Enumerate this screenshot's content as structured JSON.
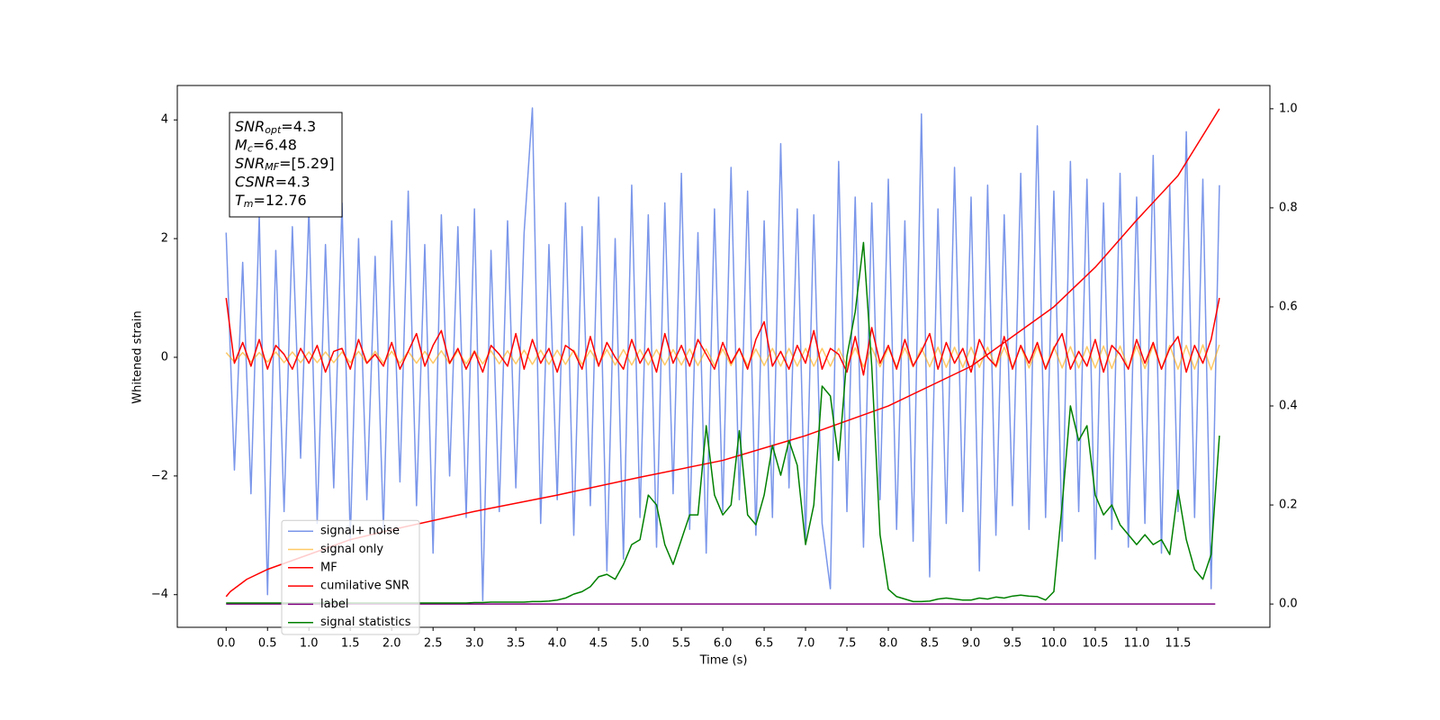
{
  "chart_data": {
    "type": "line",
    "xlabel": "Time (s)",
    "ylabel": "Whitened strain",
    "xlim": [
      -0.59,
      12.61
    ],
    "ylim": [
      -4.55,
      4.58
    ],
    "y2lim": [
      -0.047,
      1.047
    ],
    "xticks": [
      {
        "value": 0,
        "label": "0.0"
      },
      0.5,
      {
        "value": 1,
        "label": "1.0"
      },
      1.5,
      {
        "value": 2,
        "label": "2.0"
      },
      2.5,
      {
        "value": 3,
        "label": "3.0"
      },
      3.5,
      {
        "value": 4,
        "label": "4.0"
      },
      4.5,
      {
        "value": 5,
        "label": "5.0"
      },
      5.5,
      {
        "value": 6,
        "label": "6.0"
      },
      6.5,
      {
        "value": 7,
        "label": "7.0"
      },
      7.5,
      {
        "value": 8,
        "label": "8.0"
      },
      8.5,
      {
        "value": 9,
        "label": "9.0"
      },
      9.5,
      {
        "value": 10,
        "label": "10.0"
      },
      10.5,
      {
        "value": 11,
        "label": "11.0"
      },
      11.5
    ],
    "yticks": [
      {
        "value": -4,
        "label": "−4"
      },
      {
        "value": -2,
        "label": "−2"
      },
      0,
      2,
      4
    ],
    "y2ticks": [
      {
        "value": 0,
        "label": "0.0"
      },
      0.2,
      0.4,
      0.6,
      0.8,
      {
        "value": 1,
        "label": "1.0"
      }
    ],
    "legend": "lower left",
    "annotations": [
      {
        "name": "SNR",
        "sub": "opt",
        "text": "=4.3"
      },
      {
        "name": "M",
        "sub": "c",
        "text": "=6.48"
      },
      {
        "name": "SNR",
        "sub": "MF",
        "text": "=[5.29]"
      },
      {
        "name": "CSNR",
        "text": "=4.3"
      },
      {
        "name": "T",
        "sub": "m",
        "text": "=12.76"
      }
    ],
    "x": [
      0,
      0.1,
      0.2,
      0.3,
      0.4,
      0.5,
      0.6,
      0.7,
      0.8,
      0.9,
      1,
      1.1,
      1.2,
      1.3,
      1.4,
      1.5,
      1.6,
      1.7,
      1.8,
      1.9,
      2,
      2.1,
      2.2,
      2.3,
      2.4,
      2.5,
      2.6,
      2.7,
      2.8,
      2.9,
      3,
      3.1,
      3.2,
      3.3,
      3.4,
      3.5,
      3.6,
      3.7,
      3.8,
      3.9,
      4,
      4.1,
      4.2,
      4.3,
      4.4,
      4.5,
      4.6,
      4.7,
      4.8,
      4.9,
      5,
      5.1,
      5.2,
      5.3,
      5.4,
      5.5,
      5.6,
      5.7,
      5.8,
      5.9,
      6,
      6.1,
      6.2,
      6.3,
      6.4,
      6.5,
      6.6,
      6.7,
      6.8,
      6.9,
      7,
      7.1,
      7.2,
      7.3,
      7.4,
      7.5,
      7.6,
      7.7,
      7.8,
      7.9,
      8,
      8.1,
      8.2,
      8.3,
      8.4,
      8.5,
      8.6,
      8.7,
      8.8,
      8.9,
      9,
      9.1,
      9.2,
      9.3,
      9.4,
      9.5,
      9.6,
      9.7,
      9.8,
      9.9,
      10,
      10.1,
      10.2,
      10.3,
      10.4,
      10.5,
      10.6,
      10.7,
      10.8,
      10.9,
      11,
      11.1,
      11.2,
      11.3,
      11.4,
      11.5,
      11.6,
      11.7,
      11.8,
      11.9,
      12
    ],
    "series": [
      {
        "name": "signal+ noise",
        "color": "#4169e1",
        "alpha": 0.7,
        "axis": "y",
        "values": [
          2.1,
          -1.9,
          1.6,
          -2.3,
          2.4,
          -4.0,
          1.8,
          -2.6,
          2.2,
          -1.7,
          2.5,
          -2.8,
          1.9,
          -2.2,
          2.6,
          -3.1,
          2.0,
          -2.4,
          1.7,
          -2.9,
          2.3,
          -2.1,
          2.8,
          -2.5,
          1.9,
          -3.3,
          2.4,
          -2.0,
          2.2,
          -2.7,
          2.5,
          -4.1,
          1.8,
          -2.6,
          2.3,
          -2.2,
          2.1,
          4.2,
          -2.8,
          1.9,
          -2.4,
          2.6,
          -3.0,
          2.2,
          -2.5,
          2.7,
          -3.6,
          2.0,
          -3.4,
          2.9,
          -2.7,
          2.4,
          -3.2,
          2.6,
          -2.3,
          3.1,
          -2.9,
          2.1,
          -3.3,
          2.5,
          -2.6,
          3.2,
          -2.4,
          2.8,
          -3.0,
          2.3,
          -2.7,
          3.6,
          -2.2,
          2.5,
          -3.1,
          2.4,
          -2.8,
          -3.9,
          3.3,
          -2.6,
          2.7,
          -3.2,
          2.6,
          -2.4,
          3.0,
          -2.9,
          2.3,
          -3.1,
          4.1,
          -3.7,
          2.5,
          -2.8,
          3.2,
          -2.6,
          2.7,
          -3.6,
          2.9,
          -3.0,
          2.4,
          -2.5,
          3.1,
          -2.9,
          3.9,
          -2.7,
          2.8,
          -3.1,
          3.3,
          -2.6,
          3.0,
          -3.4,
          2.6,
          -2.9,
          3.1,
          -3.2,
          2.7,
          -2.8,
          3.4,
          -3.3,
          2.9,
          -2.6,
          3.8,
          -2.7,
          3.0,
          -3.9,
          2.9
        ]
      },
      {
        "name": "signal only",
        "color": "#ffa500",
        "alpha": 0.6,
        "axis": "y",
        "values": [
          0.08,
          -0.08,
          0.08,
          -0.08,
          0.08,
          -0.08,
          0.09,
          -0.09,
          0.09,
          -0.09,
          0.09,
          -0.09,
          0.09,
          -0.09,
          0.09,
          -0.09,
          0.1,
          -0.1,
          0.1,
          -0.1,
          0.1,
          -0.1,
          0.1,
          -0.1,
          0.1,
          -0.1,
          0.11,
          -0.11,
          0.11,
          -0.11,
          0.11,
          -0.11,
          0.11,
          -0.11,
          0.11,
          -0.11,
          0.12,
          -0.12,
          0.12,
          -0.12,
          0.12,
          -0.12,
          0.12,
          -0.12,
          0.12,
          -0.12,
          0.13,
          -0.13,
          0.13,
          -0.13,
          0.13,
          -0.13,
          0.13,
          -0.13,
          0.13,
          -0.13,
          0.14,
          -0.14,
          0.14,
          -0.14,
          0.14,
          -0.14,
          0.14,
          -0.14,
          0.14,
          -0.14,
          0.15,
          -0.15,
          0.15,
          -0.15,
          0.15,
          -0.15,
          0.15,
          -0.15,
          0.15,
          -0.15,
          0.16,
          -0.16,
          0.16,
          -0.16,
          0.16,
          -0.16,
          0.16,
          -0.16,
          0.16,
          -0.16,
          0.17,
          -0.17,
          0.17,
          -0.17,
          0.17,
          -0.17,
          0.17,
          -0.17,
          0.17,
          -0.17,
          0.18,
          -0.18,
          0.18,
          -0.18,
          0.18,
          -0.18,
          0.18,
          -0.18,
          0.18,
          -0.18,
          0.19,
          -0.19,
          0.19,
          -0.19,
          0.19,
          -0.19,
          0.2,
          -0.2,
          0.2,
          -0.2,
          0.2,
          -0.2,
          0.21,
          -0.21,
          0.21
        ]
      },
      {
        "name": "MF",
        "color": "#ff0000",
        "alpha": 1,
        "axis": "y",
        "values": [
          1.0,
          -0.1,
          0.25,
          -0.15,
          0.3,
          -0.2,
          0.2,
          0.05,
          -0.2,
          0.15,
          -0.1,
          0.2,
          -0.25,
          0.1,
          0.15,
          -0.2,
          0.3,
          -0.1,
          0.05,
          -0.15,
          0.25,
          -0.2,
          0.1,
          0.4,
          -0.15,
          0.2,
          0.45,
          -0.1,
          0.15,
          -0.2,
          0.1,
          -0.25,
          0.2,
          0.05,
          -0.15,
          0.4,
          -0.2,
          0.3,
          -0.1,
          0.15,
          -0.25,
          0.2,
          0.1,
          -0.2,
          0.35,
          -0.15,
          0.25,
          0.0,
          -0.2,
          0.3,
          -0.1,
          0.15,
          -0.25,
          0.4,
          -0.1,
          0.2,
          -0.15,
          0.3,
          0.05,
          -0.2,
          0.25,
          -0.1,
          0.15,
          -0.2,
          0.3,
          0.6,
          -0.15,
          0.1,
          -0.2,
          0.2,
          -0.1,
          0.45,
          -0.2,
          0.15,
          0.05,
          -0.25,
          0.35,
          -0.3,
          0.5,
          -0.1,
          0.2,
          -0.2,
          0.3,
          -0.15,
          0.1,
          0.4,
          -0.2,
          0.25,
          -0.1,
          0.15,
          -0.25,
          0.3,
          0.0,
          -0.15,
          0.35,
          -0.2,
          0.2,
          -0.1,
          0.25,
          -0.2,
          0.15,
          0.4,
          -0.2,
          0.1,
          -0.15,
          0.3,
          -0.25,
          0.2,
          0.05,
          -0.2,
          0.3,
          -0.1,
          0.25,
          -0.2,
          0.15,
          0.35,
          -0.25,
          0.2,
          -0.1,
          0.3,
          1.0
        ]
      },
      {
        "name": "cumilative SNR",
        "color": "#ff0000",
        "alpha": 1,
        "axis": "y2",
        "x": [
          0,
          0.05,
          0.25,
          0.5,
          1,
          1.5,
          2,
          3,
          4,
          5,
          6,
          7,
          8,
          9,
          10,
          10.5,
          11,
          11.5,
          12
        ],
        "values": [
          0.015,
          0.025,
          0.05,
          0.07,
          0.1,
          0.13,
          0.15,
          0.187,
          0.22,
          0.256,
          0.29,
          0.34,
          0.4,
          0.48,
          0.6,
          0.68,
          0.775,
          0.865,
          1.0
        ]
      },
      {
        "name": "label",
        "color": "#800080",
        "alpha": 1,
        "axis": "y2",
        "x": [
          0,
          11.95
        ],
        "values": [
          0,
          0
        ]
      },
      {
        "name": "signal statistics",
        "color": "#008000",
        "alpha": 1,
        "axis": "y2",
        "values": [
          0.002,
          0.002,
          0.002,
          0.002,
          0.002,
          0.002,
          0.002,
          0.002,
          0.002,
          0.002,
          0.002,
          0.002,
          0.002,
          0.002,
          0.002,
          0.002,
          0.002,
          0.002,
          0.002,
          0.002,
          0.002,
          0.002,
          0.002,
          0.002,
          0.002,
          0.002,
          0.002,
          0.002,
          0.002,
          0.002,
          0.003,
          0.003,
          0.004,
          0.004,
          0.004,
          0.004,
          0.004,
          0.005,
          0.005,
          0.006,
          0.008,
          0.012,
          0.02,
          0.025,
          0.035,
          0.055,
          0.06,
          0.05,
          0.08,
          0.12,
          0.13,
          0.22,
          0.2,
          0.12,
          0.08,
          0.13,
          0.18,
          0.18,
          0.36,
          0.22,
          0.18,
          0.2,
          0.35,
          0.18,
          0.16,
          0.22,
          0.32,
          0.26,
          0.33,
          0.28,
          0.12,
          0.2,
          0.44,
          0.42,
          0.29,
          0.5,
          0.59,
          0.73,
          0.48,
          0.14,
          0.03,
          0.015,
          0.01,
          0.005,
          0.005,
          0.006,
          0.01,
          0.012,
          0.01,
          0.008,
          0.008,
          0.012,
          0.01,
          0.014,
          0.012,
          0.016,
          0.018,
          0.016,
          0.015,
          0.008,
          0.025,
          0.2,
          0.4,
          0.33,
          0.36,
          0.22,
          0.18,
          0.2,
          0.16,
          0.14,
          0.12,
          0.14,
          0.12,
          0.13,
          0.1,
          0.23,
          0.13,
          0.07,
          0.05,
          0.1,
          0.34
        ]
      }
    ]
  }
}
